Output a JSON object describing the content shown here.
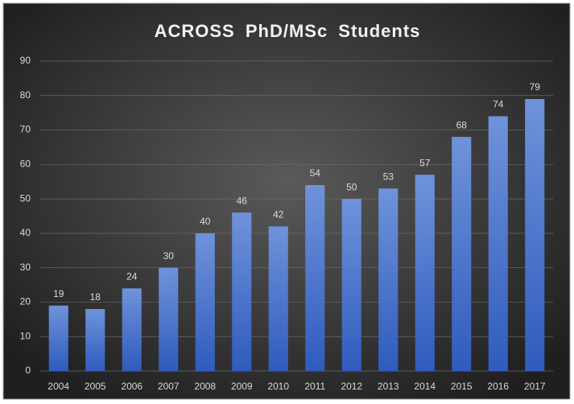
{
  "chart_data": {
    "type": "bar",
    "title": "ACROSS PhD/MSc Students",
    "categories": [
      "2004",
      "2005",
      "2006",
      "2007",
      "2008",
      "2009",
      "2010",
      "2011",
      "2012",
      "2013",
      "2014",
      "2015",
      "2016",
      "2017"
    ],
    "values": [
      19,
      18,
      24,
      30,
      40,
      46,
      42,
      54,
      50,
      53,
      57,
      68,
      74,
      79
    ],
    "color": "#4472c4",
    "ylim": [
      0,
      90
    ],
    "yticks": [
      0,
      10,
      20,
      30,
      40,
      50,
      60,
      70,
      80,
      90
    ],
    "grid": true
  }
}
